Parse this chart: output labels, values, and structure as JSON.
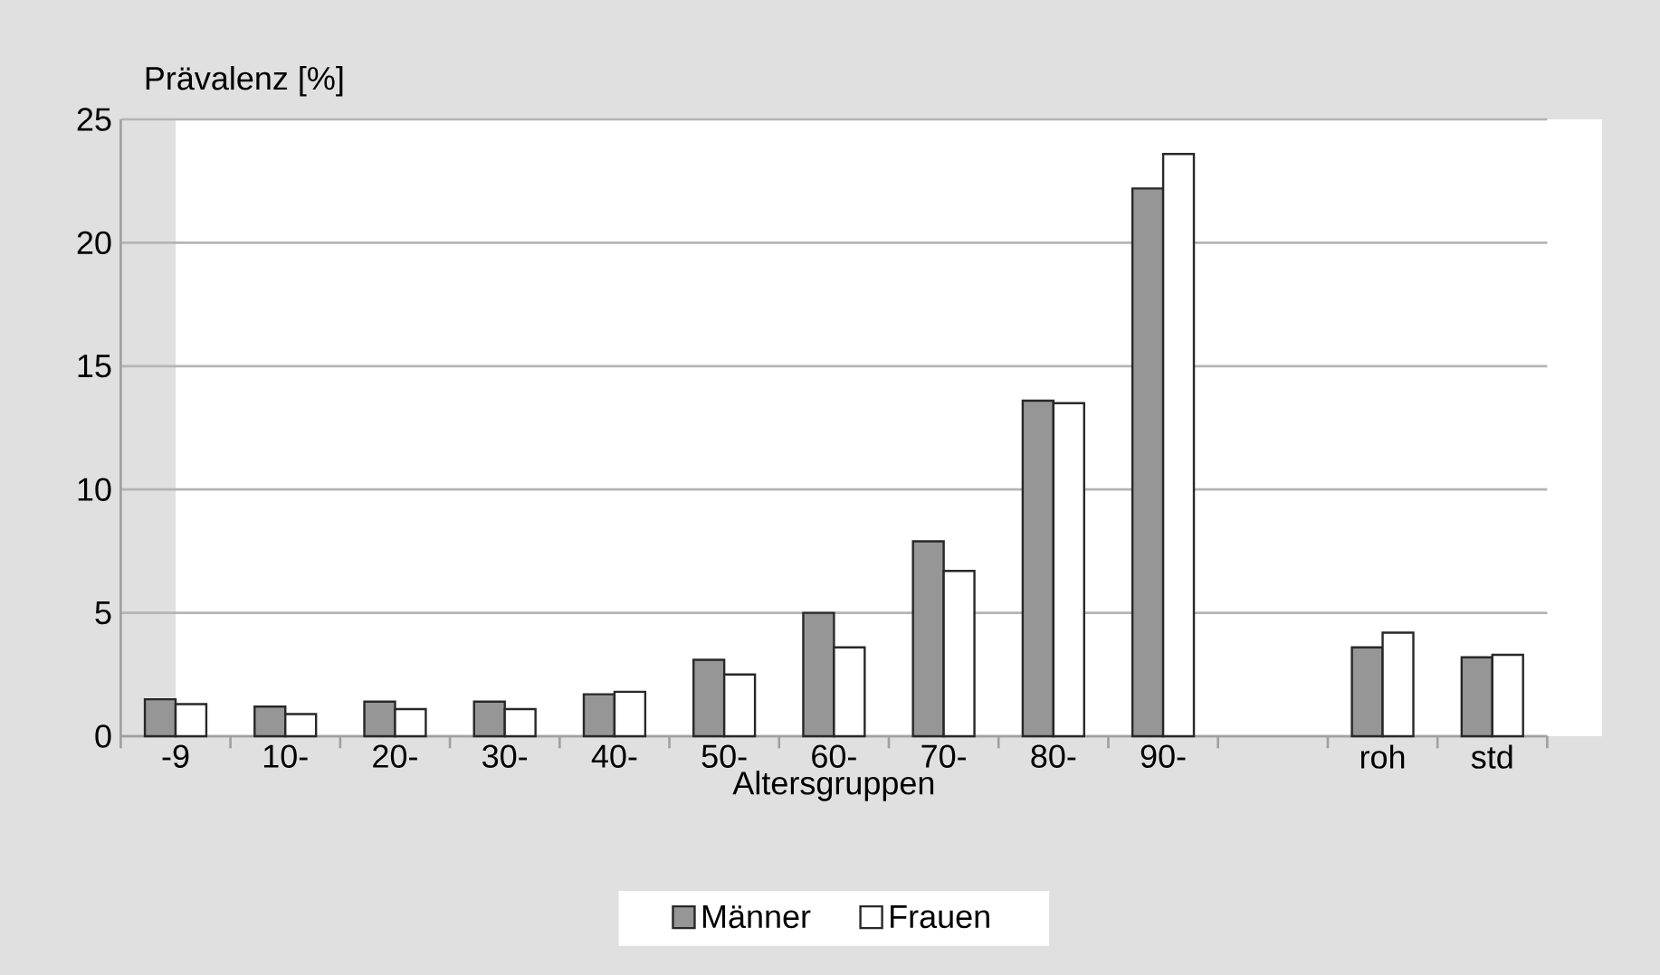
{
  "chart_data": {
    "type": "bar",
    "ylabel": "Prävalenz [%]",
    "xlabel": "Altersgruppen",
    "categories": [
      "-9",
      "10-",
      "20-",
      "30-",
      "40-",
      "50-",
      "60-",
      "70-",
      "80-",
      "90-",
      null,
      "roh",
      "std"
    ],
    "series": [
      {
        "name": "Männer",
        "color": "#969696",
        "values": [
          1.5,
          1.2,
          1.4,
          1.4,
          1.7,
          3.1,
          5.0,
          7.9,
          13.6,
          22.2,
          null,
          3.6,
          3.2
        ]
      },
      {
        "name": "Frauen",
        "color": "#ffffff",
        "values": [
          1.3,
          0.9,
          1.1,
          1.1,
          1.8,
          2.5,
          3.6,
          6.7,
          13.5,
          23.6,
          null,
          4.2,
          3.3
        ]
      }
    ],
    "ylim": [
      0,
      25
    ],
    "yticks": [
      0,
      5,
      10,
      15,
      20,
      25
    ],
    "grid": "y",
    "legend": "bottom"
  }
}
